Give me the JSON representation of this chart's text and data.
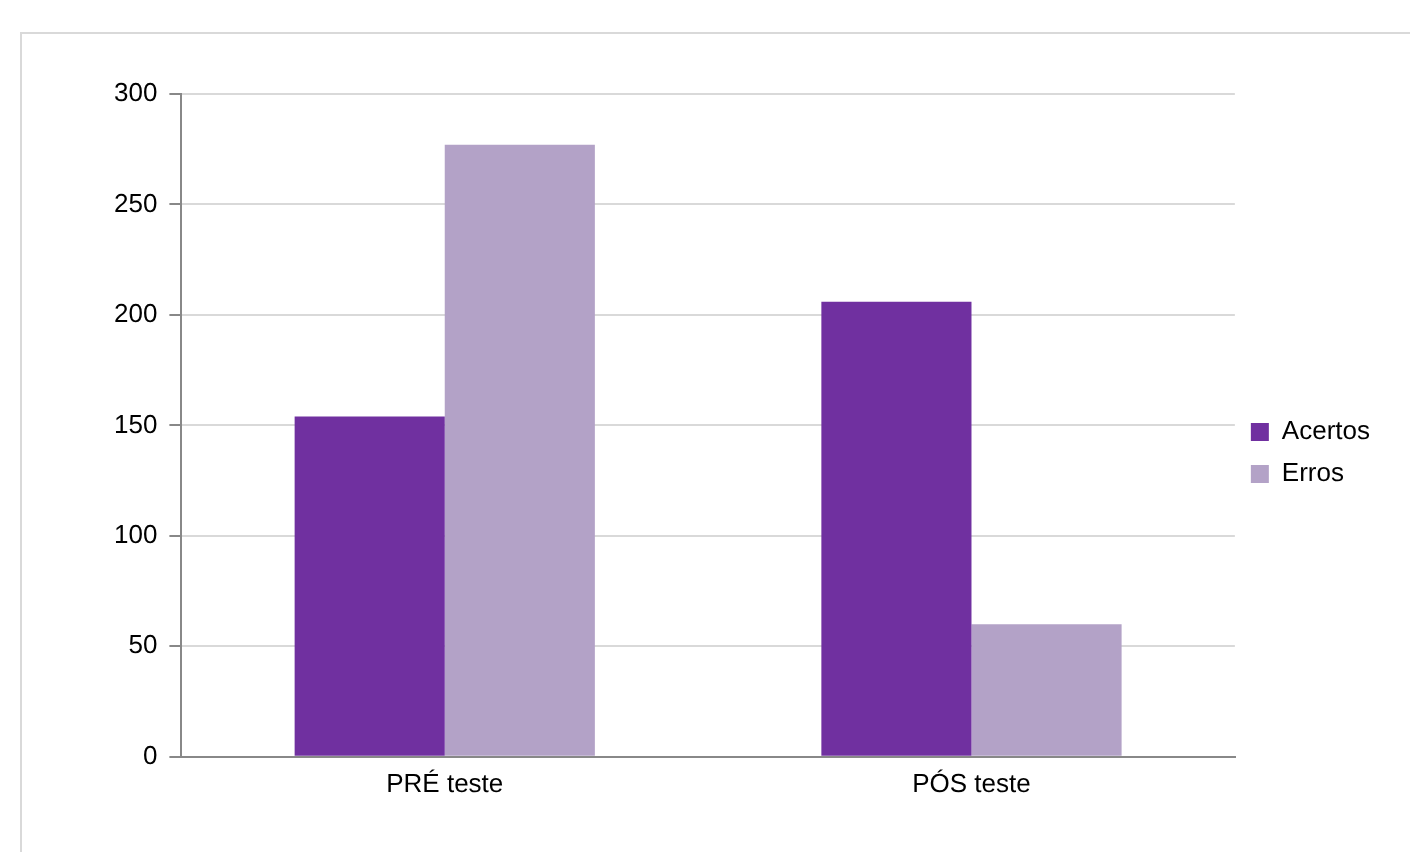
{
  "chart_data": {
    "type": "bar",
    "categories": [
      "PRÉ teste",
      "PÓS teste"
    ],
    "series": [
      {
        "name": "Acertos",
        "color": "#7030a0",
        "values": [
          154,
          206
        ]
      },
      {
        "name": "Erros",
        "color": "#b3a2c7",
        "values": [
          277,
          60
        ]
      }
    ],
    "ylim": [
      0,
      300
    ],
    "yticks": [
      0,
      50,
      100,
      150,
      200,
      250,
      300
    ],
    "grid": "y",
    "legend": "right"
  }
}
